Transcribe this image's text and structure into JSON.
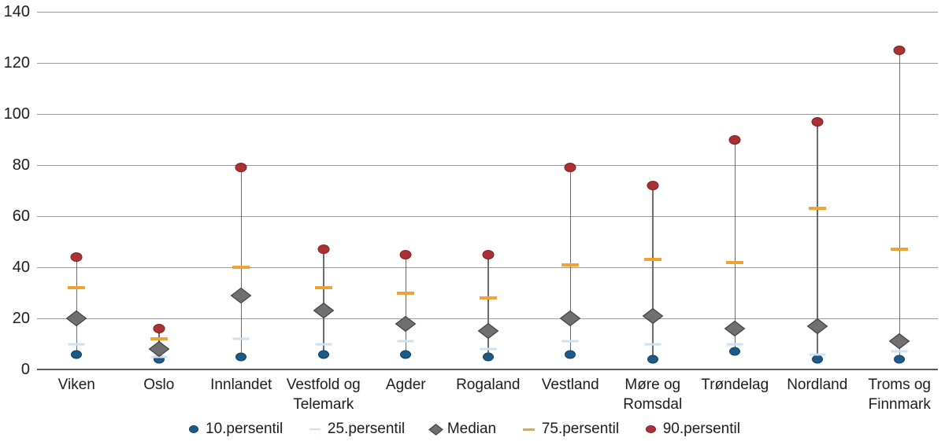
{
  "chart_data": {
    "type": "scatter",
    "subtype": "percentile-range",
    "title": "",
    "xlabel": "",
    "ylabel": "",
    "ylim": [
      0,
      140
    ],
    "ytick": 20,
    "grid": "horizontal",
    "legend_position": "bottom-center",
    "categories": [
      "Viken",
      "Oslo",
      "Innlandet",
      "Vestfold og Telemark",
      "Agder",
      "Rogaland",
      "Vestland",
      "Møre og Romsdal",
      "Trøndelag",
      "Nordland",
      "Troms og Finnmark"
    ],
    "series": [
      {
        "key": "p10",
        "name": "10.persentil",
        "marker": "dot",
        "color": "#1d5a88",
        "stroke": "#123f62",
        "values": [
          6,
          4,
          5,
          6,
          6,
          5,
          6,
          4,
          7,
          4,
          4
        ]
      },
      {
        "key": "p25",
        "name": "25.persentil",
        "marker": "dash",
        "color": "#cde2f2",
        "stroke": "#cde2f2",
        "values": [
          10,
          5,
          12,
          10,
          11,
          8,
          11,
          10,
          10,
          6,
          7
        ]
      },
      {
        "key": "med",
        "name": "Median",
        "marker": "diamond",
        "color": "#707070",
        "stroke": "#3d3d3d",
        "values": [
          20,
          8,
          29,
          23,
          18,
          15,
          20,
          21,
          16,
          17,
          11
        ]
      },
      {
        "key": "p75",
        "name": "75.persentil",
        "marker": "dash",
        "color": "#f0a232",
        "stroke": "#f0a232",
        "values": [
          32,
          12,
          40,
          32,
          30,
          28,
          41,
          43,
          42,
          63,
          47
        ]
      },
      {
        "key": "p90",
        "name": "90.persentil",
        "marker": "dot",
        "color": "#aa3134",
        "stroke": "#7c1f23",
        "values": [
          44,
          16,
          79,
          47,
          45,
          45,
          79,
          72,
          90,
          97,
          125
        ]
      }
    ],
    "range_line": {
      "from": "p10",
      "to": "p90",
      "color": "#6b6b6b"
    },
    "colors": {
      "gridline": "#9a9a9a",
      "axis_line": "#5a5a5a",
      "text": "#1c1c1c",
      "background": "#ffffff"
    }
  }
}
